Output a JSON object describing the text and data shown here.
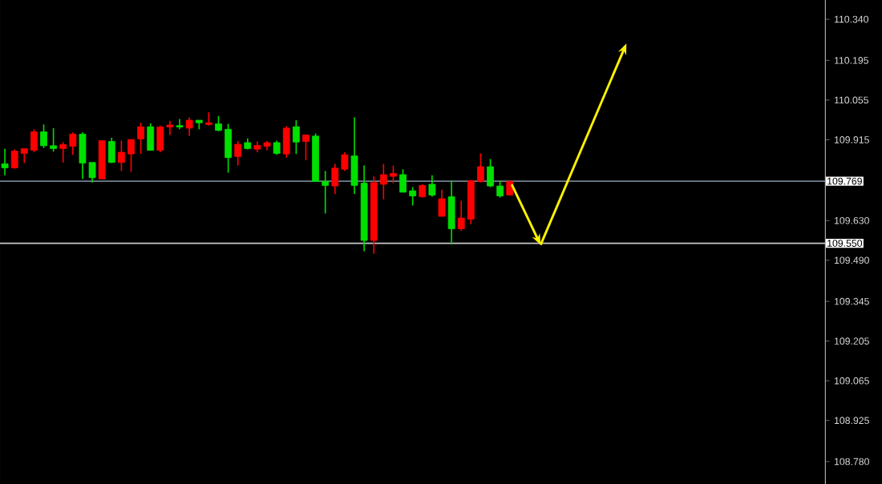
{
  "chart_data": {
    "type": "candlestick",
    "categories": [
      null,
      null,
      null,
      null,
      null,
      null,
      null,
      null,
      null,
      null,
      null,
      null,
      null,
      null,
      null,
      null,
      null,
      null,
      null,
      null,
      null,
      null,
      null,
      null,
      null,
      null,
      null,
      null,
      null,
      null,
      null,
      null,
      null,
      null,
      null,
      null,
      null,
      null,
      null,
      null,
      null,
      null,
      null,
      null,
      null,
      null,
      null,
      null,
      null,
      null,
      null,
      null,
      null,
      null,
      null,
      null,
      null,
      null,
      null,
      null,
      null,
      null,
      null,
      null,
      null,
      null,
      null,
      null,
      null,
      null,
      null,
      null,
      null,
      null,
      null,
      null,
      null,
      null,
      null,
      null,
      null,
      null,
      null,
      null,
      null
    ],
    "ohlc": [
      [
        109.816,
        109.884,
        109.79,
        109.83
      ],
      [
        109.875,
        109.881,
        109.813,
        109.816
      ],
      [
        109.884,
        109.884,
        109.833,
        109.867
      ],
      [
        109.943,
        109.952,
        109.871,
        109.878
      ],
      [
        109.894,
        109.969,
        109.886,
        109.943
      ],
      [
        109.884,
        109.956,
        109.873,
        109.894
      ],
      [
        109.898,
        109.907,
        109.835,
        109.884
      ],
      [
        109.935,
        109.941,
        109.862,
        109.892
      ],
      [
        109.833,
        109.941,
        109.777,
        109.935
      ],
      [
        109.781,
        109.835,
        109.764,
        109.835
      ],
      [
        109.912,
        109.912,
        109.777,
        109.777
      ],
      [
        109.835,
        109.922,
        109.833,
        109.909
      ],
      [
        109.871,
        109.912,
        109.805,
        109.835
      ],
      [
        109.916,
        109.916,
        109.802,
        109.865
      ],
      [
        109.961,
        109.975,
        109.865,
        109.918
      ],
      [
        109.878,
        109.973,
        109.877,
        109.961
      ],
      [
        109.96,
        109.965,
        109.871,
        109.878
      ],
      [
        109.967,
        109.982,
        109.932,
        109.96
      ],
      [
        109.96,
        109.988,
        109.952,
        109.965
      ],
      [
        109.984,
        109.994,
        109.928,
        109.956
      ],
      [
        109.975,
        109.984,
        109.952,
        109.984
      ],
      [
        109.975,
        110.012,
        109.965,
        109.969
      ],
      [
        109.948,
        109.999,
        109.945,
        109.971
      ],
      [
        109.852,
        109.971,
        109.799,
        109.952
      ],
      [
        109.899,
        109.911,
        109.824,
        109.856
      ],
      [
        109.884,
        109.92,
        109.881,
        109.905
      ],
      [
        109.895,
        109.909,
        109.871,
        109.882
      ],
      [
        109.905,
        109.911,
        109.878,
        109.892
      ],
      [
        109.867,
        109.912,
        109.862,
        109.905
      ],
      [
        109.956,
        109.963,
        109.852,
        109.865
      ],
      [
        109.907,
        109.984,
        109.865,
        109.961
      ],
      [
        109.932,
        109.932,
        109.843,
        109.909
      ],
      [
        109.768,
        109.937,
        109.768,
        109.928
      ],
      [
        109.754,
        109.805,
        109.655,
        109.768
      ],
      [
        109.815,
        109.83,
        109.724,
        109.752
      ],
      [
        109.862,
        109.871,
        109.805,
        109.811
      ],
      [
        109.754,
        109.994,
        109.724,
        109.858
      ],
      [
        109.56,
        109.824,
        109.522,
        109.762
      ],
      [
        109.764,
        109.786,
        109.513,
        109.56
      ],
      [
        109.792,
        109.83,
        109.705,
        109.758
      ],
      [
        109.796,
        109.824,
        109.762,
        109.786
      ],
      [
        109.73,
        109.811,
        109.73,
        109.792
      ],
      [
        109.717,
        109.748,
        109.683,
        109.735
      ],
      [
        109.754,
        109.758,
        109.711,
        109.714
      ],
      [
        109.72,
        109.79,
        109.714,
        109.758
      ],
      [
        109.707,
        109.739,
        109.645,
        109.645
      ],
      [
        109.601,
        109.771,
        109.545,
        109.714
      ],
      [
        109.639,
        109.7,
        109.594,
        109.601
      ],
      [
        109.771,
        109.771,
        109.617,
        109.635
      ],
      [
        109.82,
        109.867,
        109.764,
        109.768
      ],
      [
        109.752,
        109.847,
        109.748,
        109.82
      ],
      [
        109.717,
        109.771,
        109.711,
        109.752
      ],
      [
        109.768,
        109.773,
        109.72,
        109.72
      ],
      null,
      null,
      null,
      null,
      null,
      null,
      null,
      null,
      null,
      null,
      null,
      null,
      null,
      null,
      null,
      null,
      null,
      null,
      null,
      null,
      null,
      null,
      null,
      null,
      null,
      null,
      null,
      null,
      null,
      null,
      null,
      null
    ],
    "colors": [
      "#00e000",
      "#ff0000",
      "#ff0000",
      "#ff0000",
      "#00e000",
      "#00e000",
      "#ff0000",
      "#ff0000",
      "#00e000",
      "#00e000",
      "#ff0000",
      "#00e000",
      "#ff0000",
      "#ff0000",
      "#ff0000",
      "#00e000",
      "#ff0000",
      "#ff0000",
      "#00e000",
      "#ff0000",
      "#00e000",
      "#ff0000",
      "#00e000",
      "#00e000",
      "#ff0000",
      "#00e000",
      "#ff0000",
      "#ff0000",
      "#00e000",
      "#ff0000",
      "#00e000",
      "#ff0000",
      "#00e000",
      "#00e000",
      "#ff0000",
      "#ff0000",
      "#00e000",
      "#00e000",
      "#ff0000",
      "#ff0000",
      "#ff0000",
      "#00e000",
      "#00e000",
      "#ff0000",
      "#00e000",
      "#ff0000",
      "#00e000",
      "#ff0000",
      "#ff0000",
      "#ff0000",
      "#00e000",
      "#00e000",
      "#ff0000",
      null,
      null,
      null,
      null,
      null,
      null,
      null,
      null,
      null,
      null,
      null,
      null,
      null,
      null,
      null,
      null,
      null,
      null,
      null,
      null,
      null,
      null,
      null,
      null,
      null,
      null,
      null,
      null,
      null,
      null,
      null,
      null
    ],
    "ylim": [
      108.701,
      110.408
    ],
    "yticks": [
      {
        "value": 108.78,
        "label": "108.780"
      },
      {
        "value": 108.925,
        "label": "108.925"
      },
      {
        "value": 109.065,
        "label": "109.065"
      },
      {
        "value": 109.205,
        "label": "109.205"
      },
      {
        "value": 109.345,
        "label": "109.345"
      },
      {
        "value": 109.49,
        "label": "109.490"
      },
      {
        "value": 109.63,
        "label": "109.630"
      },
      {
        "value": 109.915,
        "label": "109.915"
      },
      {
        "value": 110.055,
        "label": "110.055"
      },
      {
        "value": 110.195,
        "label": "110.195"
      },
      {
        "value": 110.34,
        "label": "110.340"
      }
    ],
    "ref_lines": [
      {
        "axis": "y",
        "value": 109.769,
        "label": "109.769",
        "color": "#708090"
      },
      {
        "axis": "y",
        "value": 109.55,
        "label": "109.550",
        "color": "#c8c8c8"
      }
    ],
    "tick_labels": "y"
  }
}
